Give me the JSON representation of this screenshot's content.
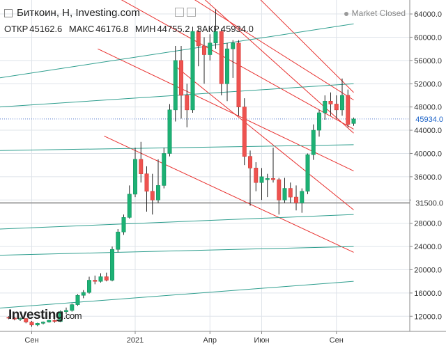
{
  "header": {
    "title": "Биткоин, Н, Investing.com",
    "open_label": "ОТКР",
    "open_value": "45162.6",
    "high_label": "МАКС",
    "high_value": "46176.8",
    "low_label": "МИН",
    "low_value": "44755.2",
    "close_label": "ЗАКР",
    "close_value": "45934.0",
    "market_status": "Market Closed"
  },
  "logo": {
    "brand": "Investing",
    "domain": ".com"
  },
  "colors": {
    "up": "#1db174",
    "down": "#ee5350",
    "red_line": "#e8302e",
    "teal_line": "#2e9e8e",
    "grid": "#dfe4ea",
    "price_tag": "#1e64c8"
  },
  "chart_data": {
    "type": "candlestick",
    "y_ticks": [
      12000,
      16000,
      20000,
      24000,
      28000,
      32000,
      36000,
      40000,
      44000,
      48000,
      52000,
      56000,
      60000,
      64000
    ],
    "ylim": [
      9400,
      66400
    ],
    "x_labels": [
      {
        "label": "Сен",
        "week": 4
      },
      {
        "label": "2021",
        "week": 22
      },
      {
        "label": "Апр",
        "week": 35
      },
      {
        "label": "Июн",
        "week": 44
      },
      {
        "label": "Сен",
        "week": 57
      }
    ],
    "current_price": "45934.0",
    "level_price": "31500.0",
    "level_value": 31500,
    "candles": [
      [
        11800,
        12000,
        11500,
        11700
      ],
      [
        11700,
        11900,
        11300,
        11500
      ],
      [
        11500,
        11800,
        11200,
        11600
      ],
      [
        11600,
        11700,
        10800,
        11000
      ],
      [
        11000,
        11200,
        10200,
        10500
      ],
      [
        10500,
        10900,
        10300,
        10800
      ],
      [
        10800,
        11100,
        10600,
        11000
      ],
      [
        11000,
        11400,
        10900,
        11300
      ],
      [
        11300,
        11500,
        10900,
        11100
      ],
      [
        11100,
        13000,
        11000,
        12800
      ],
      [
        12800,
        13500,
        12400,
        13000
      ],
      [
        13000,
        14200,
        12800,
        14000
      ],
      [
        14000,
        15800,
        13800,
        15600
      ],
      [
        15600,
        16500,
        15100,
        16100
      ],
      [
        16100,
        18800,
        15900,
        18200
      ],
      [
        18200,
        19000,
        17500,
        18000
      ],
      [
        18000,
        19400,
        17800,
        18800
      ],
      [
        18800,
        19500,
        18000,
        18200
      ],
      [
        18200,
        24000,
        18000,
        23500
      ],
      [
        23500,
        27000,
        23000,
        26500
      ],
      [
        26500,
        29500,
        26000,
        29000
      ],
      [
        29000,
        34500,
        28800,
        33000
      ],
      [
        33000,
        41000,
        32500,
        39000
      ],
      [
        39000,
        42000,
        35000,
        36500
      ],
      [
        36500,
        37800,
        30000,
        33500
      ],
      [
        33500,
        36500,
        29500,
        32000
      ],
      [
        32000,
        39000,
        31500,
        34500
      ],
      [
        34500,
        41000,
        34000,
        40000
      ],
      [
        40000,
        48500,
        39500,
        47500
      ],
      [
        47500,
        58500,
        45500,
        56000
      ],
      [
        56000,
        58500,
        46000,
        50000
      ],
      [
        50000,
        52000,
        44500,
        47500
      ],
      [
        47500,
        61800,
        47000,
        61000
      ],
      [
        61000,
        61800,
        55000,
        58500
      ],
      [
        58500,
        60000,
        52000,
        57000
      ],
      [
        57000,
        60500,
        56000,
        59000
      ],
      [
        59000,
        64800,
        58000,
        61000
      ],
      [
        61000,
        61500,
        50000,
        52000
      ],
      [
        52000,
        59000,
        49000,
        58000
      ],
      [
        58000,
        59500,
        53000,
        59000
      ],
      [
        59000,
        59500,
        46500,
        48000
      ],
      [
        48000,
        49500,
        38000,
        39500
      ],
      [
        39500,
        40500,
        31000,
        37500
      ],
      [
        37500,
        38500,
        33500,
        35000
      ],
      [
        35000,
        37500,
        32000,
        36000
      ],
      [
        35500,
        36500,
        32500,
        35700
      ],
      [
        35700,
        41000,
        35000,
        35500
      ],
      [
        35500,
        35800,
        29500,
        32000
      ],
      [
        32000,
        35800,
        31500,
        34000
      ],
      [
        34000,
        35000,
        31500,
        32500
      ],
      [
        32500,
        34500,
        30200,
        31500
      ],
      [
        31500,
        34000,
        29800,
        33500
      ],
      [
        33500,
        40000,
        33000,
        39800
      ],
      [
        39800,
        45000,
        38900,
        44000
      ],
      [
        44000,
        47500,
        42900,
        47000
      ],
      [
        47000,
        50000,
        45800,
        49000
      ],
      [
        49000,
        50500,
        46500,
        48500
      ],
      [
        48500,
        50000,
        46000,
        47500
      ],
      [
        47500,
        52900,
        46500,
        50000
      ],
      [
        50000,
        51000,
        44500,
        45000
      ],
      [
        45162.6,
        46176.8,
        44755.2,
        45934.0
      ]
    ],
    "channel_lines": [
      {
        "color": "red",
        "x1": 5.8,
        "y1": 83000,
        "x2": 60,
        "y2": 49200
      },
      {
        "color": "red",
        "x1": 9.5,
        "y1": 72000,
        "x2": 60,
        "y2": 44200
      },
      {
        "color": "red",
        "x1": 15.5,
        "y1": 58000,
        "x2": 60,
        "y2": 37000
      },
      {
        "color": "red",
        "x1": 16.6,
        "y1": 43000,
        "x2": 60,
        "y2": 23000
      },
      {
        "color": "red",
        "x1": 29,
        "y1": 81000,
        "x2": 60,
        "y2": 50500
      },
      {
        "color": "red",
        "x1": 29,
        "y1": 71000,
        "x2": 60,
        "y2": 43500
      },
      {
        "color": "red",
        "x1": 29,
        "y1": 55000,
        "x2": 60,
        "y2": 30300
      },
      {
        "color": "teal",
        "x1": -1.6,
        "y1": 53000,
        "x2": 60,
        "y2": 62300
      },
      {
        "color": "teal",
        "x1": -1.6,
        "y1": 48000,
        "x2": 60,
        "y2": 52000
      },
      {
        "color": "teal",
        "x1": -1.6,
        "y1": 40500,
        "x2": 60,
        "y2": 41500
      },
      {
        "color": "teal",
        "x1": -1.6,
        "y1": 27000,
        "x2": 60,
        "y2": 29500
      },
      {
        "color": "teal",
        "x1": -1.6,
        "y1": 22500,
        "x2": 60,
        "y2": 24000
      },
      {
        "color": "teal",
        "x1": -1.6,
        "y1": 13400,
        "x2": 60,
        "y2": 18000
      }
    ]
  }
}
